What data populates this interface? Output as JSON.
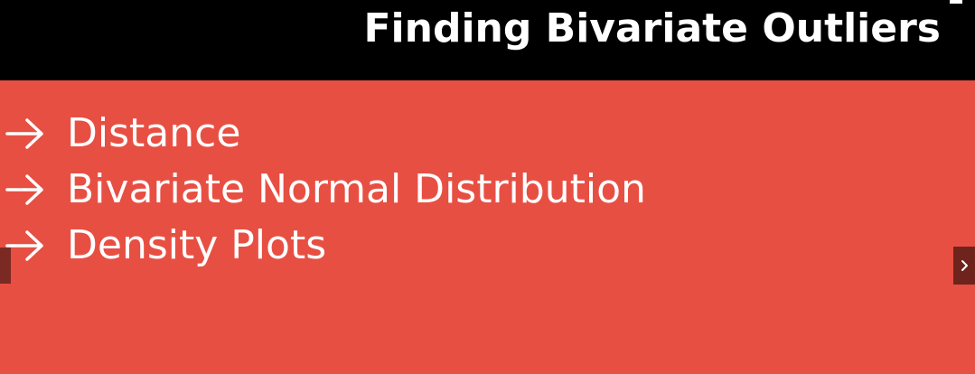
{
  "slide": {
    "title": "Finding Bivariate Outliers",
    "bullets": [
      {
        "label": "Distance",
        "icon": "arrow-right-icon"
      },
      {
        "label": "Bivariate Normal Distribution",
        "icon": "arrow-right-icon"
      },
      {
        "label": "Density Plots",
        "icon": "arrow-right-icon"
      }
    ]
  },
  "navigation": {
    "prev_icon": "previous-slide-control",
    "next_icon": "chevron-right-icon"
  },
  "colors": {
    "title_background": "#000000",
    "content_background": "#e84f43",
    "text": "#ffffff",
    "nav_button": "#6e241d"
  }
}
